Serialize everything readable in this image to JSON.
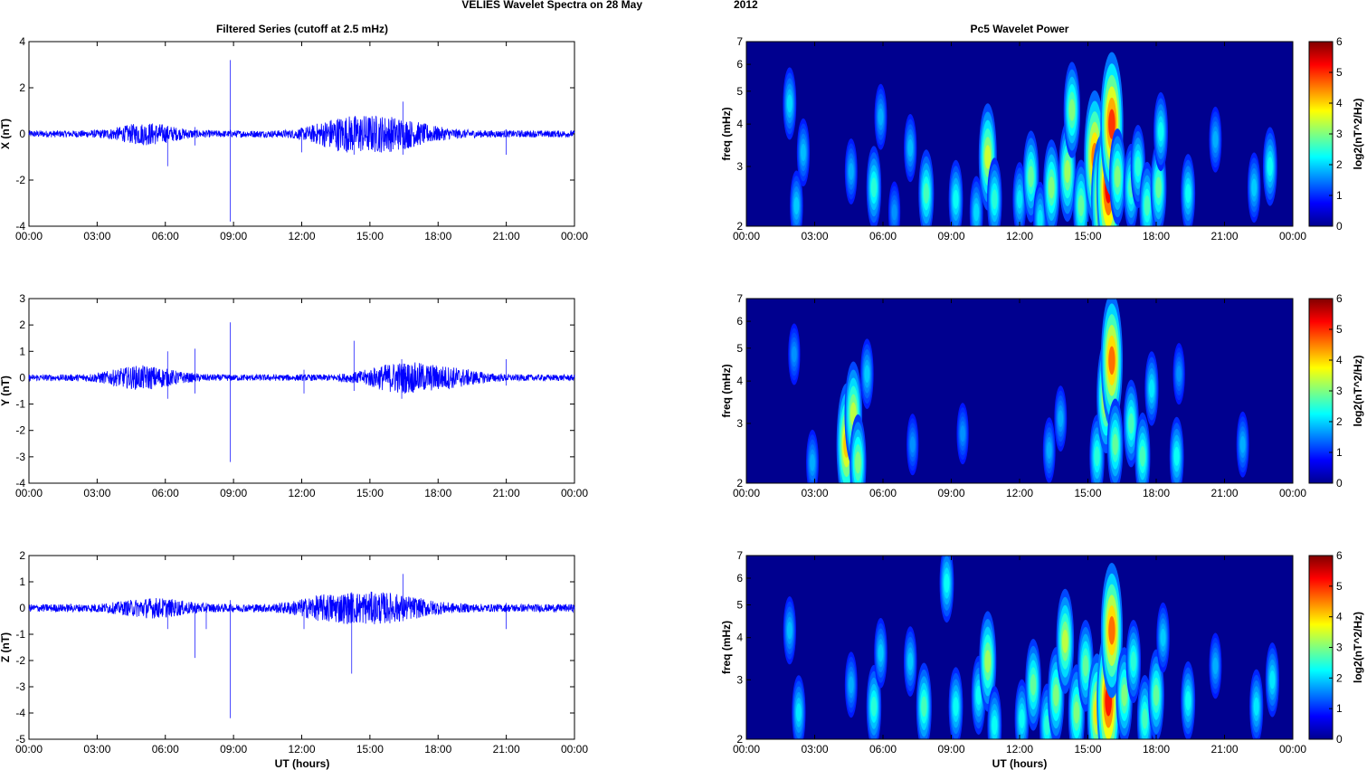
{
  "figure": {
    "title_left": "VELIES Wavelet Spectra on 28 May",
    "title_right": "2012",
    "left_column_title": "Filtered Series (cutoff at 2.5 mHz)",
    "right_column_title": "Pc5 Wavelet Power",
    "x_label": "UT (hours)",
    "colorbar_label": "log2(nT^2/Hz)",
    "colormap": "jet"
  },
  "chart_data": [
    {
      "type": "line",
      "panel": "filtered-x",
      "ylabel": "X (nT)",
      "xlim_hours": [
        0,
        24
      ],
      "ylim": [
        -4,
        4
      ],
      "xticks": [
        "00:00",
        "03:00",
        "06:00",
        "09:00",
        "12:00",
        "15:00",
        "18:00",
        "21:00",
        "00:00"
      ],
      "yticks": [
        "4",
        "2",
        "0",
        "-2",
        "-4"
      ],
      "ytick_values": [
        4,
        2,
        0,
        -2,
        -4
      ],
      "line_color": "#0000ff",
      "spikes": [
        {
          "t": 6.1,
          "max": 0.2,
          "min": -1.4
        },
        {
          "t": 7.3,
          "max": 0.3,
          "min": -0.5
        },
        {
          "t": 8.85,
          "max": 3.2,
          "min": -3.8
        },
        {
          "t": 12.0,
          "max": 0.2,
          "min": -0.8
        },
        {
          "t": 14.3,
          "max": 0.6,
          "min": -0.9
        },
        {
          "t": 16.45,
          "max": 1.4,
          "min": -0.9
        },
        {
          "t": 21.0,
          "max": 0.2,
          "min": -0.9
        }
      ],
      "activity": [
        {
          "center": 5.2,
          "width": 1.4,
          "amp": 0.35
        },
        {
          "center": 15.5,
          "width": 2.2,
          "amp": 0.65
        },
        {
          "center": 13.5,
          "width": 1.2,
          "amp": 0.3
        }
      ],
      "baseline_amp": 0.15
    },
    {
      "type": "line",
      "panel": "filtered-y",
      "ylabel": "Y (nT)",
      "xlim_hours": [
        0,
        24
      ],
      "ylim": [
        -4,
        3
      ],
      "xticks": [
        "00:00",
        "03:00",
        "06:00",
        "09:00",
        "12:00",
        "15:00",
        "18:00",
        "21:00",
        "00:00"
      ],
      "yticks": [
        "3",
        "2",
        "1",
        "0",
        "-1",
        "-2",
        "-3",
        "-4"
      ],
      "ytick_values": [
        3,
        2,
        1,
        0,
        -1,
        -2,
        -3,
        -4
      ],
      "line_color": "#0000ff",
      "spikes": [
        {
          "t": 6.1,
          "max": 1.0,
          "min": -0.8
        },
        {
          "t": 7.3,
          "max": 1.1,
          "min": -0.6
        },
        {
          "t": 8.85,
          "max": 2.1,
          "min": -3.2
        },
        {
          "t": 12.1,
          "max": 0.3,
          "min": -0.6
        },
        {
          "t": 14.3,
          "max": 1.4,
          "min": -0.5
        },
        {
          "t": 16.4,
          "max": 0.7,
          "min": -0.8
        },
        {
          "t": 21.0,
          "max": 0.7,
          "min": -0.3
        }
      ],
      "activity": [
        {
          "center": 5.0,
          "width": 1.6,
          "amp": 0.35
        },
        {
          "center": 16.3,
          "width": 1.6,
          "amp": 0.45
        },
        {
          "center": 18.5,
          "width": 1.5,
          "amp": 0.25
        }
      ],
      "baseline_amp": 0.12
    },
    {
      "type": "line",
      "panel": "filtered-z",
      "ylabel": "Z (nT)",
      "xlim_hours": [
        0,
        24
      ],
      "ylim": [
        -5,
        2
      ],
      "xticks": [
        "00:00",
        "03:00",
        "06:00",
        "09:00",
        "12:00",
        "15:00",
        "18:00",
        "21:00",
        "00:00"
      ],
      "yticks": [
        "2",
        "1",
        "0",
        "-1",
        "-2",
        "-3",
        "-4",
        "-5"
      ],
      "ytick_values": [
        2,
        1,
        0,
        -1,
        -2,
        -3,
        -4,
        -5
      ],
      "line_color": "#0000ff",
      "spikes": [
        {
          "t": 6.1,
          "max": 0.2,
          "min": -0.8
        },
        {
          "t": 7.3,
          "max": 0.2,
          "min": -1.9
        },
        {
          "t": 7.8,
          "max": 0.2,
          "min": -0.8
        },
        {
          "t": 8.85,
          "max": 0.3,
          "min": -4.2
        },
        {
          "t": 12.1,
          "max": 0.2,
          "min": -0.8
        },
        {
          "t": 14.2,
          "max": 0.6,
          "min": -2.5
        },
        {
          "t": 16.45,
          "max": 1.3,
          "min": -0.5
        },
        {
          "t": 21.0,
          "max": 0.2,
          "min": -0.8
        }
      ],
      "activity": [
        {
          "center": 5.5,
          "width": 1.6,
          "amp": 0.25
        },
        {
          "center": 15.4,
          "width": 2.2,
          "amp": 0.45
        },
        {
          "center": 13.0,
          "width": 1.5,
          "amp": 0.25
        }
      ],
      "baseline_amp": 0.15
    },
    {
      "type": "heatmap",
      "panel": "wavelet-x",
      "ylabel": "freq (mHz)",
      "y_scale": "log",
      "xlim_hours": [
        0,
        24
      ],
      "ylim_mhz": [
        2,
        7
      ],
      "xticks": [
        "00:00",
        "03:00",
        "06:00",
        "09:00",
        "12:00",
        "15:00",
        "18:00",
        "21:00",
        "00:00"
      ],
      "yticks": [
        "7",
        "6",
        "5",
        "4",
        "3",
        "2"
      ],
      "ytick_values": [
        7,
        6,
        5,
        4,
        3,
        2
      ],
      "color_range": [
        0,
        6
      ],
      "colorbar_ticks": [
        "6",
        "5",
        "4",
        "3",
        "2",
        "1",
        "0"
      ],
      "background_color": "#00008f",
      "blobs": [
        {
          "t": 1.9,
          "f": 4.6,
          "power": 1.5
        },
        {
          "t": 2.5,
          "f": 3.3,
          "power": 1.3
        },
        {
          "t": 2.2,
          "f": 2.3,
          "power": 1.4
        },
        {
          "t": 4.6,
          "f": 2.9,
          "power": 1.2
        },
        {
          "t": 5.6,
          "f": 2.6,
          "power": 2.0
        },
        {
          "t": 5.9,
          "f": 4.2,
          "power": 1.2
        },
        {
          "t": 6.5,
          "f": 2.2,
          "power": 1.0
        },
        {
          "t": 7.2,
          "f": 3.4,
          "power": 1.3
        },
        {
          "t": 7.9,
          "f": 2.5,
          "power": 2.2
        },
        {
          "t": 9.2,
          "f": 2.4,
          "power": 1.8
        },
        {
          "t": 10.1,
          "f": 2.2,
          "power": 1.5
        },
        {
          "t": 10.6,
          "f": 3.2,
          "power": 3.1
        },
        {
          "t": 10.9,
          "f": 2.4,
          "power": 2.0
        },
        {
          "t": 12.0,
          "f": 2.4,
          "power": 1.6
        },
        {
          "t": 12.5,
          "f": 2.8,
          "power": 2.4
        },
        {
          "t": 12.9,
          "f": 2.1,
          "power": 1.6
        },
        {
          "t": 13.4,
          "f": 2.6,
          "power": 2.6
        },
        {
          "t": 14.1,
          "f": 2.9,
          "power": 2.8
        },
        {
          "t": 14.3,
          "f": 4.4,
          "power": 2.6
        },
        {
          "t": 14.7,
          "f": 2.3,
          "power": 2.4
        },
        {
          "t": 15.3,
          "f": 3.2,
          "power": 4.3
        },
        {
          "t": 15.6,
          "f": 2.4,
          "power": 4.1
        },
        {
          "t": 15.9,
          "f": 2.6,
          "power": 5.2
        },
        {
          "t": 16.05,
          "f": 4.0,
          "power": 4.8
        },
        {
          "t": 16.3,
          "f": 2.8,
          "power": 2.6
        },
        {
          "t": 16.9,
          "f": 2.6,
          "power": 2.2
        },
        {
          "t": 17.2,
          "f": 3.0,
          "power": 2.0
        },
        {
          "t": 17.6,
          "f": 2.3,
          "power": 2.2
        },
        {
          "t": 18.1,
          "f": 2.6,
          "power": 2.4
        },
        {
          "t": 18.2,
          "f": 3.8,
          "power": 1.8
        },
        {
          "t": 19.4,
          "f": 2.5,
          "power": 1.8
        },
        {
          "t": 20.6,
          "f": 3.6,
          "power": 1.2
        },
        {
          "t": 22.3,
          "f": 2.6,
          "power": 1.4
        },
        {
          "t": 23.0,
          "f": 3.0,
          "power": 1.8
        }
      ]
    },
    {
      "type": "heatmap",
      "panel": "wavelet-y",
      "ylabel": "freq (mHz)",
      "y_scale": "log",
      "xlim_hours": [
        0,
        24
      ],
      "ylim_mhz": [
        2,
        7
      ],
      "xticks": [
        "00:00",
        "03:00",
        "06:00",
        "09:00",
        "12:00",
        "15:00",
        "18:00",
        "21:00",
        "00:00"
      ],
      "yticks": [
        "7",
        "6",
        "5",
        "4",
        "3",
        "2"
      ],
      "ytick_values": [
        7,
        6,
        5,
        4,
        3,
        2
      ],
      "color_range": [
        0,
        6
      ],
      "colorbar_ticks": [
        "6",
        "5",
        "4",
        "3",
        "2",
        "1",
        "0"
      ],
      "background_color": "#00008f",
      "blobs": [
        {
          "t": 2.1,
          "f": 4.8,
          "power": 1.0
        },
        {
          "t": 2.9,
          "f": 2.3,
          "power": 1.2
        },
        {
          "t": 4.4,
          "f": 2.6,
          "power": 3.8
        },
        {
          "t": 4.7,
          "f": 3.2,
          "power": 3.0
        },
        {
          "t": 4.9,
          "f": 2.3,
          "power": 2.6
        },
        {
          "t": 5.3,
          "f": 4.2,
          "power": 1.4
        },
        {
          "t": 7.3,
          "f": 2.6,
          "power": 1.0
        },
        {
          "t": 9.5,
          "f": 2.8,
          "power": 1.0
        },
        {
          "t": 13.3,
          "f": 2.5,
          "power": 1.2
        },
        {
          "t": 13.8,
          "f": 3.1,
          "power": 1.2
        },
        {
          "t": 15.4,
          "f": 2.4,
          "power": 2.0
        },
        {
          "t": 15.8,
          "f": 3.6,
          "power": 3.4
        },
        {
          "t": 16.05,
          "f": 4.6,
          "power": 4.4
        },
        {
          "t": 16.2,
          "f": 2.6,
          "power": 2.4
        },
        {
          "t": 16.9,
          "f": 3.0,
          "power": 2.2
        },
        {
          "t": 17.4,
          "f": 2.4,
          "power": 2.2
        },
        {
          "t": 17.8,
          "f": 3.8,
          "power": 1.6
        },
        {
          "t": 18.9,
          "f": 2.4,
          "power": 1.8
        },
        {
          "t": 19.0,
          "f": 4.2,
          "power": 1.0
        },
        {
          "t": 21.8,
          "f": 2.6,
          "power": 1.2
        }
      ]
    },
    {
      "type": "heatmap",
      "panel": "wavelet-z",
      "ylabel": "freq (mHz)",
      "y_scale": "log",
      "xlim_hours": [
        0,
        24
      ],
      "ylim_mhz": [
        2,
        7
      ],
      "xticks": [
        "00:00",
        "03:00",
        "06:00",
        "09:00",
        "12:00",
        "15:00",
        "18:00",
        "21:00",
        "00:00"
      ],
      "yticks": [
        "7",
        "6",
        "5",
        "4",
        "3",
        "2"
      ],
      "ytick_values": [
        7,
        6,
        5,
        4,
        3,
        2
      ],
      "color_range": [
        0,
        6
      ],
      "colorbar_ticks": [
        "6",
        "5",
        "4",
        "3",
        "2",
        "1",
        "0"
      ],
      "background_color": "#00008f",
      "blobs": [
        {
          "t": 1.9,
          "f": 4.2,
          "power": 1.3
        },
        {
          "t": 2.3,
          "f": 2.4,
          "power": 1.6
        },
        {
          "t": 4.6,
          "f": 2.9,
          "power": 1.2
        },
        {
          "t": 5.6,
          "f": 2.5,
          "power": 2.0
        },
        {
          "t": 5.9,
          "f": 3.6,
          "power": 1.4
        },
        {
          "t": 7.2,
          "f": 3.4,
          "power": 1.4
        },
        {
          "t": 7.8,
          "f": 2.5,
          "power": 2.2
        },
        {
          "t": 8.8,
          "f": 5.8,
          "power": 1.8
        },
        {
          "t": 9.2,
          "f": 2.5,
          "power": 1.8
        },
        {
          "t": 10.2,
          "f": 2.7,
          "power": 1.8
        },
        {
          "t": 10.6,
          "f": 3.4,
          "power": 2.8
        },
        {
          "t": 10.9,
          "f": 2.2,
          "power": 1.8
        },
        {
          "t": 12.1,
          "f": 2.3,
          "power": 1.8
        },
        {
          "t": 12.6,
          "f": 2.9,
          "power": 2.4
        },
        {
          "t": 13.2,
          "f": 2.2,
          "power": 2.0
        },
        {
          "t": 13.6,
          "f": 2.7,
          "power": 2.6
        },
        {
          "t": 14.0,
          "f": 3.9,
          "power": 3.0
        },
        {
          "t": 14.5,
          "f": 2.4,
          "power": 2.6
        },
        {
          "t": 14.9,
          "f": 3.3,
          "power": 2.4
        },
        {
          "t": 15.4,
          "f": 2.4,
          "power": 3.6
        },
        {
          "t": 15.9,
          "f": 2.6,
          "power": 5.0
        },
        {
          "t": 16.05,
          "f": 4.2,
          "power": 4.4
        },
        {
          "t": 16.6,
          "f": 2.7,
          "power": 2.6
        },
        {
          "t": 17.0,
          "f": 3.4,
          "power": 2.0
        },
        {
          "t": 17.5,
          "f": 2.3,
          "power": 2.2
        },
        {
          "t": 18.0,
          "f": 2.7,
          "power": 2.4
        },
        {
          "t": 18.3,
          "f": 4.0,
          "power": 1.4
        },
        {
          "t": 19.4,
          "f": 2.6,
          "power": 1.8
        },
        {
          "t": 20.6,
          "f": 3.3,
          "power": 1.2
        },
        {
          "t": 22.4,
          "f": 2.5,
          "power": 1.6
        },
        {
          "t": 23.1,
          "f": 3.0,
          "power": 1.6
        }
      ]
    }
  ]
}
